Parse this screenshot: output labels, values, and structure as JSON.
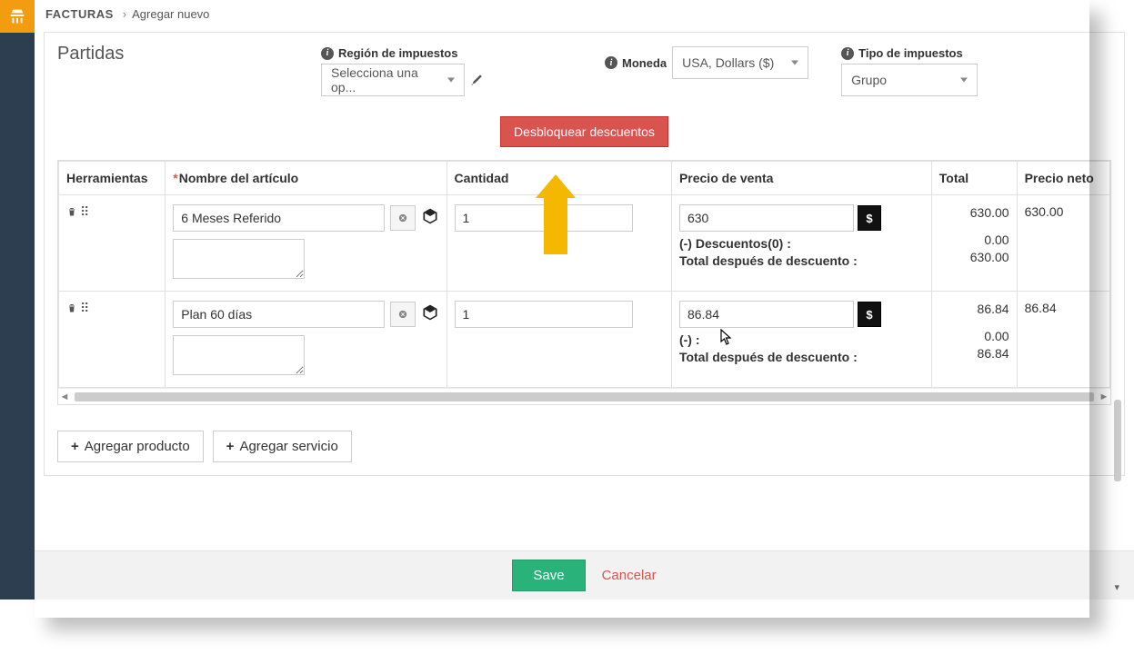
{
  "brand_color": "#f39c12",
  "sidebar_bg": "#2c3e50",
  "breadcrumb": {
    "module": "FACTURAS",
    "page": "Agregar nuevo"
  },
  "section_title": "Partidas",
  "fields": {
    "tax_region": {
      "label": "Región de impuestos",
      "placeholder": "Selecciona una op..."
    },
    "currency": {
      "label": "Moneda",
      "value": "USA, Dollars ($)"
    },
    "tax_type": {
      "label": "Tipo de impuestos",
      "value": "Grupo"
    }
  },
  "unlock_button": "Desbloquear descuentos",
  "table": {
    "headers": {
      "tools": "Herramientas",
      "name": "Nombre del artículo",
      "qty": "Cantidad",
      "price": "Precio de venta",
      "total": "Total",
      "net": "Precio neto"
    },
    "rows": [
      {
        "name": "6 Meses Referido",
        "desc": "",
        "qty": "1",
        "price": "630",
        "discounts_label": "(-) Descuentos(0) :",
        "after_label": "Total después de descuento :",
        "total_main": "630.00",
        "total_disc": "0.00",
        "total_after": "630.00",
        "net": "630.00"
      },
      {
        "name": "Plan 60 días",
        "desc": "",
        "qty": "1",
        "price": "86.84",
        "discounts_label": "(-)  :",
        "after_label": "Total después de descuento :",
        "total_main": "86.84",
        "total_disc": "0.00",
        "total_after": "86.84",
        "net": "86.84"
      }
    ]
  },
  "add_product": "Agregar producto",
  "add_service": "Agregar servicio",
  "footer": {
    "save": "Save",
    "cancel": "Cancelar"
  },
  "colors": {
    "danger": "#d9534f",
    "success": "#2ab27b",
    "arrow": "#f5b800"
  }
}
